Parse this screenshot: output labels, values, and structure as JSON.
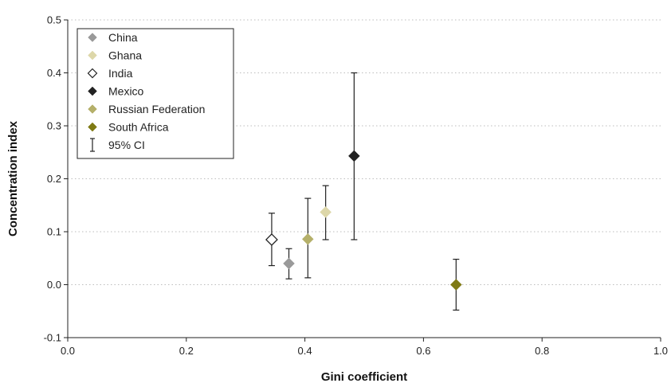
{
  "chart_data": {
    "type": "scatter",
    "title": "",
    "xlabel": "Gini coefficient",
    "ylabel": "Concentration index",
    "xlim": [
      0.0,
      1.0
    ],
    "ylim": [
      -0.1,
      0.5
    ],
    "xticks": [
      "0.0",
      "0.2",
      "0.4",
      "0.6",
      "0.8",
      "1.0"
    ],
    "yticks": [
      "-0.1",
      "0.0",
      "0.1",
      "0.2",
      "0.3",
      "0.4",
      "0.5"
    ],
    "grid": "horizontal dotted",
    "legend_position": "top-left",
    "ci_legend_label": "95% CI",
    "series": [
      {
        "name": "China",
        "color": "#9a9a9a",
        "marker": "filled-diamond",
        "x": 0.373,
        "y": 0.04,
        "ci_low": 0.011,
        "ci_high": 0.068
      },
      {
        "name": "Ghana",
        "color": "#ddd7a9",
        "marker": "filled-diamond",
        "x": 0.435,
        "y": 0.137,
        "ci_low": 0.085,
        "ci_high": 0.187
      },
      {
        "name": "India",
        "color": "#ffffff",
        "marker": "open-diamond",
        "x": 0.344,
        "y": 0.085,
        "ci_low": 0.036,
        "ci_high": 0.135
      },
      {
        "name": "Mexico",
        "color": "#222222",
        "marker": "filled-diamond",
        "x": 0.483,
        "y": 0.243,
        "ci_low": 0.085,
        "ci_high": 0.4
      },
      {
        "name": "Russian Federation",
        "color": "#b5b06a",
        "marker": "filled-diamond",
        "x": 0.405,
        "y": 0.086,
        "ci_low": 0.013,
        "ci_high": 0.163
      },
      {
        "name": "South Africa",
        "color": "#7f7a14",
        "marker": "filled-diamond",
        "x": 0.655,
        "y": 0.0,
        "ci_low": -0.048,
        "ci_high": 0.048
      }
    ]
  }
}
